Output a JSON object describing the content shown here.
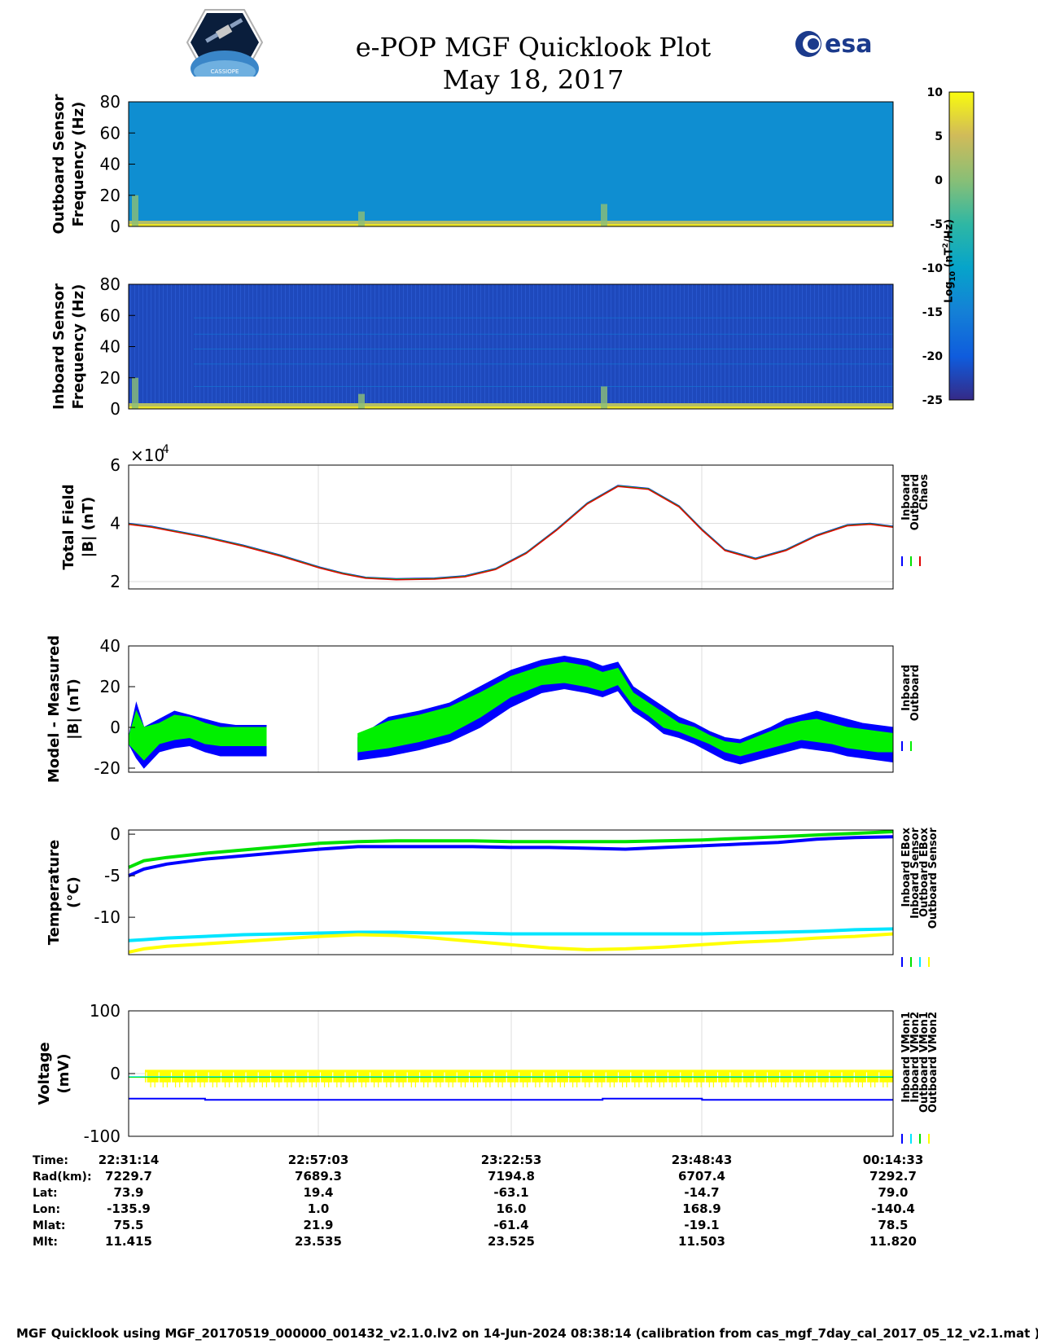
{
  "header": {
    "title": "e-POP MGF Quicklook Plot",
    "date": "May 18, 2017",
    "left_logo_text": "CASSIOPE",
    "right_logo_text": "esa"
  },
  "colorbar": {
    "ticks": [
      "10",
      "5",
      "0",
      "-5",
      "-10",
      "-15",
      "-20",
      "-25"
    ],
    "label_main": "Log",
    "label_sub": "10",
    "label_rest": " (nT",
    "label_sup": "2",
    "label_end": "/Hz)"
  },
  "chart_data": [
    {
      "type": "heatmap",
      "ylabel_line1": "Outboard Sensor",
      "ylabel_line2": "Frequency (Hz)",
      "ylim": [
        0,
        80
      ],
      "yticks": [
        "80",
        "60",
        "40",
        "20",
        "0"
      ],
      "background_level": -13,
      "color_range": [
        -25,
        10
      ]
    },
    {
      "type": "heatmap",
      "ylabel_line1": "Inboard Sensor",
      "ylabel_line2": "Frequency (Hz)",
      "ylim": [
        0,
        80
      ],
      "yticks": [
        "80",
        "60",
        "40",
        "20",
        "0"
      ],
      "background_level": -22,
      "color_range": [
        -25,
        10
      ]
    },
    {
      "type": "line",
      "ylabel_line1": "Total Field",
      "ylabel_line2": "|B| (nT)",
      "yticks": [
        "6",
        "4",
        "2"
      ],
      "exponent_label": "×10",
      "exponent": "4",
      "ylim": [
        17500,
        60000
      ],
      "x": [
        0,
        0.03,
        0.06,
        0.1,
        0.15,
        0.2,
        0.25,
        0.28,
        0.31,
        0.35,
        0.4,
        0.44,
        0.48,
        0.52,
        0.56,
        0.6,
        0.64,
        0.68,
        0.72,
        0.75,
        0.78,
        0.82,
        0.86,
        0.9,
        0.94,
        0.97,
        1.0
      ],
      "series": [
        {
          "name": "Inboard",
          "values": [
            40000,
            39000,
            37500,
            35500,
            32500,
            29000,
            25000,
            23000,
            21500,
            21000,
            21200,
            22000,
            24500,
            30000,
            38000,
            47000,
            53000,
            52000,
            46000,
            38000,
            31000,
            28000,
            31000,
            36000,
            39500,
            40000,
            39000
          ]
        },
        {
          "name": "Outboard",
          "values": [
            40000,
            39000,
            37500,
            35500,
            32500,
            29000,
            25000,
            23000,
            21500,
            21000,
            21200,
            22000,
            24500,
            30000,
            38000,
            47000,
            53000,
            52000,
            46000,
            38000,
            31000,
            28000,
            31000,
            36000,
            39500,
            40000,
            39000
          ]
        },
        {
          "name": "Chaos",
          "values": [
            40000,
            39000,
            37500,
            35500,
            32500,
            29000,
            25000,
            23000,
            21500,
            21000,
            21200,
            22000,
            24500,
            30000,
            38000,
            47000,
            53000,
            52000,
            46000,
            38000,
            31000,
            28000,
            31000,
            36000,
            39500,
            40000,
            39000
          ]
        }
      ],
      "colors": [
        "#0000ff",
        "#00e000",
        "#e00000"
      ]
    },
    {
      "type": "area",
      "ylabel_line1": "Model - Measured",
      "ylabel_line2": "|B| (nT)",
      "yticks": [
        "40",
        "20",
        "0",
        "-20"
      ],
      "ylim": [
        -22,
        40
      ],
      "x": [
        0,
        0.01,
        0.02,
        0.04,
        0.06,
        0.08,
        0.1,
        0.12,
        0.14,
        0.16,
        0.18,
        null,
        0.3,
        0.34,
        0.38,
        0.42,
        0.46,
        0.5,
        0.54,
        0.57,
        0.6,
        0.62,
        0.64,
        0.66,
        0.68,
        0.7,
        0.72,
        0.74,
        0.76,
        0.78,
        0.8,
        0.82,
        0.84,
        0.86,
        0.88,
        0.9,
        0.92,
        0.94,
        0.96,
        0.98,
        1.0
      ],
      "series": [
        {
          "name": "Inboard",
          "lower": [
            -8,
            -15,
            -20,
            -12,
            -10,
            -9,
            -12,
            -14,
            -14,
            -14,
            -14,
            null,
            -16,
            -14,
            -11,
            -7,
            0,
            10,
            17,
            19,
            17,
            15,
            18,
            8,
            3,
            -3,
            -5,
            -8,
            -12,
            -16,
            -18,
            -16,
            -14,
            -12,
            -10,
            -11,
            -12,
            -14,
            -15,
            -16,
            -17
          ],
          "upper": [
            -5,
            12,
            0,
            4,
            8,
            6,
            4,
            2,
            1,
            1,
            1,
            null,
            -5,
            5,
            8,
            12,
            20,
            28,
            33,
            35,
            33,
            30,
            32,
            20,
            15,
            10,
            5,
            2,
            -2,
            -5,
            -6,
            -3,
            0,
            4,
            6,
            8,
            6,
            4,
            2,
            1,
            0
          ]
        },
        {
          "name": "Outboard",
          "lower": [
            -8,
            -12,
            -16,
            -8,
            -6,
            -5,
            -8,
            -9,
            -9,
            -9,
            -9,
            null,
            -12,
            -10,
            -7,
            -3,
            5,
            15,
            21,
            22,
            20,
            18,
            21,
            11,
            6,
            0,
            -2,
            -5,
            -8,
            -12,
            -14,
            -12,
            -10,
            -8,
            -6,
            -7,
            -8,
            -10,
            -11,
            -12,
            -12
          ],
          "upper": [
            -5,
            8,
            0,
            2,
            6,
            5,
            2,
            0,
            0,
            0,
            0,
            null,
            -3,
            3,
            6,
            10,
            17,
            25,
            30,
            32,
            30,
            27,
            29,
            17,
            12,
            7,
            2,
            0,
            -4,
            -7,
            -8,
            -5,
            -2,
            1,
            3,
            4,
            2,
            0,
            -1,
            -2,
            -3
          ]
        }
      ],
      "colors": [
        "#0000ff",
        "#00f000"
      ]
    },
    {
      "type": "line",
      "ylabel_line1": "Temperature",
      "ylabel_line2": "(°C)",
      "yticks": [
        "0",
        "-5",
        "-10"
      ],
      "ylim": [
        -14.5,
        0.5
      ],
      "x": [
        0,
        0.02,
        0.05,
        0.1,
        0.15,
        0.2,
        0.25,
        0.3,
        0.35,
        0.4,
        0.45,
        0.5,
        0.55,
        0.6,
        0.65,
        0.7,
        0.75,
        0.8,
        0.85,
        0.9,
        0.95,
        1.0
      ],
      "series": [
        {
          "name": "Inboard EBox",
          "values": [
            -5.0,
            -4.2,
            -3.6,
            -3.0,
            -2.6,
            -2.2,
            -1.8,
            -1.5,
            -1.5,
            -1.5,
            -1.5,
            -1.6,
            -1.6,
            -1.7,
            -1.8,
            -1.6,
            -1.4,
            -1.2,
            -1.0,
            -0.6,
            -0.4,
            -0.3
          ]
        },
        {
          "name": "Inboard Sensor",
          "values": [
            -4.0,
            -3.2,
            -2.8,
            -2.3,
            -1.9,
            -1.5,
            -1.1,
            -0.9,
            -0.8,
            -0.8,
            -0.8,
            -0.9,
            -0.9,
            -0.9,
            -0.9,
            -0.8,
            -0.7,
            -0.5,
            -0.3,
            -0.1,
            0.1,
            0.3
          ]
        },
        {
          "name": "Outboard EBox",
          "values": [
            -12.8,
            -12.7,
            -12.5,
            -12.3,
            -12.1,
            -12.0,
            -11.9,
            -11.8,
            -11.8,
            -11.9,
            -11.9,
            -12.0,
            -12.0,
            -12.0,
            -12.0,
            -12.0,
            -12.0,
            -11.9,
            -11.8,
            -11.7,
            -11.5,
            -11.4
          ]
        },
        {
          "name": "Outboard Sensor",
          "values": [
            -14.2,
            -13.8,
            -13.5,
            -13.2,
            -12.9,
            -12.6,
            -12.3,
            -12.1,
            -12.2,
            -12.5,
            -12.9,
            -13.3,
            -13.7,
            -13.9,
            -13.8,
            -13.6,
            -13.3,
            -13.0,
            -12.8,
            -12.5,
            -12.3,
            -12.0
          ]
        }
      ],
      "colors": [
        "#0000ff",
        "#00e000",
        "#00e5ff",
        "#ffff00"
      ]
    },
    {
      "type": "line",
      "ylabel_line1": "Voltage",
      "ylabel_line2": "(mV)",
      "yticks": [
        "100",
        "0",
        "-100"
      ],
      "ylim": [
        -100,
        100
      ],
      "x": [
        0,
        0.03,
        0.03,
        0.1,
        0.1,
        0.2,
        0.2,
        0.62,
        0.62,
        0.75,
        0.75,
        0.8,
        0.8,
        1.0
      ],
      "series": [
        {
          "name": "Inboard VMon1",
          "values": [
            -40,
            -40,
            -40,
            -40,
            -42,
            -42,
            -42,
            -42,
            -40,
            -40,
            -42,
            -42,
            -42,
            -42
          ]
        },
        {
          "name": "Inboard VMon2",
          "values": [
            -5,
            -5,
            -5,
            -5,
            -5,
            -5,
            -5,
            -5,
            -5,
            -5,
            -5,
            -5,
            -5,
            -5
          ]
        },
        {
          "name": "Outboard VMon1",
          "values": [
            -6,
            -6,
            -6,
            -6,
            -6,
            -6,
            -6,
            -6,
            -6,
            -6,
            -6,
            -6,
            -6,
            -6
          ]
        },
        {
          "name": "Outboard VMon2",
          "values": [
            -2,
            -2,
            -2,
            -2,
            -2,
            -2,
            -2,
            -2,
            -2,
            -2,
            -2,
            -2,
            -2,
            -2
          ]
        }
      ],
      "colors": [
        "#0000ff",
        "#00e5ff",
        "#00e000",
        "#ffff00"
      ]
    }
  ],
  "table": {
    "row_labels": [
      "Time:",
      "Rad(km):",
      "Lat:",
      "Lon:",
      "Mlat:",
      "Mlt:"
    ],
    "columns": [
      [
        "22:31:14",
        "7229.7",
        "73.9",
        "-135.9",
        "75.5",
        "11.415"
      ],
      [
        "22:57:03",
        "7689.3",
        "19.4",
        "1.0",
        "21.9",
        "23.535"
      ],
      [
        "23:22:53",
        "7194.8",
        "-63.1",
        "16.0",
        "-61.4",
        "23.525"
      ],
      [
        "23:48:43",
        "6707.4",
        "-14.7",
        "168.9",
        "-19.1",
        "11.503"
      ],
      [
        "00:14:33",
        "7292.7",
        "79.0",
        "-140.4",
        "78.5",
        "11.820"
      ]
    ]
  },
  "footer": "MGF Quicklook using MGF_20170519_000000_001432_v2.1.0.lv2 on 14-Jun-2024 08:38:14 (calibration from cas_mgf_7day_cal_2017_05_12_v2.1.mat )"
}
